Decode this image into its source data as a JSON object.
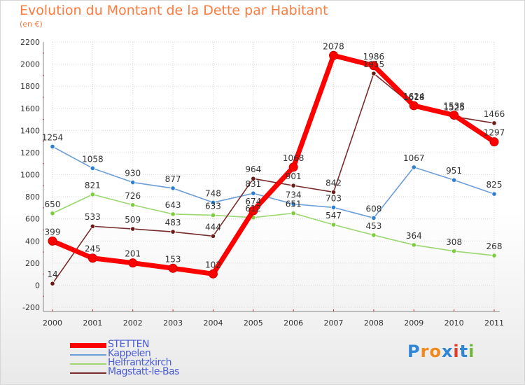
{
  "header": {
    "title": "Evolution du Montant de la Dette par Habitant",
    "subtitle": "(en €)"
  },
  "logo": {
    "text": "Proxiti"
  },
  "colors": {
    "title": "#ff7a3d",
    "grid": "#d8d8d8",
    "axis": "#888888",
    "tick_marker": "#cc2222"
  },
  "chart_data": {
    "type": "line",
    "title": "Evolution du Montant de la Dette par Habitant",
    "subtitle": "(en €)",
    "xlabel": "",
    "ylabel": "",
    "x": [
      "2000",
      "2001",
      "2002",
      "2003",
      "2004",
      "2005",
      "2006",
      "2007",
      "2008",
      "2009",
      "2010",
      "2011"
    ],
    "ylim": [
      -200,
      2200
    ],
    "yticks": [
      -200,
      0,
      200,
      400,
      600,
      800,
      1000,
      1200,
      1400,
      1600,
      1800,
      2000,
      2200
    ],
    "grid": true,
    "legend_position": "bottom-left",
    "series": [
      {
        "name": "STETTEN",
        "color": "#ff0000",
        "marker_color": "#ff0000",
        "emphasis": true,
        "values": [
          399,
          245,
          201,
          153,
          102,
          674,
          1068,
          2078,
          1986,
          1624,
          1538,
          1297
        ],
        "labels": [
          "399",
          "245",
          "201",
          "153",
          "102",
          "674",
          "1068",
          "2078",
          "1986",
          "1624",
          "1538",
          "1297"
        ]
      },
      {
        "name": "Kappelen",
        "color": "#6b9ed8",
        "marker_color": "#2f7fd0",
        "emphasis": false,
        "values": [
          1254,
          1058,
          930,
          877,
          748,
          831,
          734,
          703,
          608,
          1067,
          951,
          825
        ],
        "labels": [
          "1254",
          "1058",
          "930",
          "877",
          "748",
          "831",
          "734",
          "703",
          "608",
          "1067",
          "951",
          "825"
        ]
      },
      {
        "name": "Helfrantzkirch",
        "color": "#9ad86f",
        "marker_color": "#7ccc3c",
        "emphasis": false,
        "values": [
          650,
          821,
          726,
          643,
          633,
          612,
          651,
          547,
          453,
          364,
          308,
          268
        ],
        "labels": [
          "650",
          "821",
          "726",
          "643",
          "633",
          "612",
          "651",
          "547",
          "453",
          "364",
          "308",
          "268"
        ]
      },
      {
        "name": "Magstatt-le-Bas",
        "color": "#7a2b2b",
        "marker_color": "#6b1a1a",
        "emphasis": false,
        "values": [
          14,
          533,
          509,
          483,
          444,
          964,
          901,
          842,
          1915,
          1618,
          1525,
          1466
        ],
        "labels": [
          "14",
          "533",
          "509",
          "483",
          "444",
          "964",
          "901",
          "842",
          "1915",
          "1618",
          "1525",
          "1466"
        ]
      }
    ]
  }
}
